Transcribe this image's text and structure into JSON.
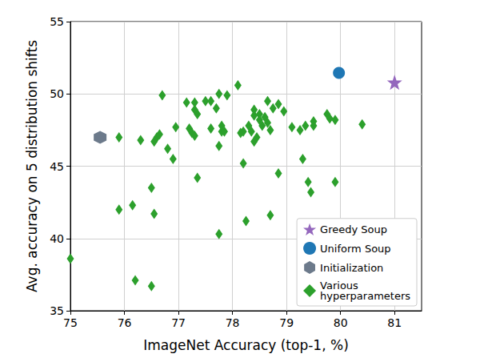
{
  "chart_data": {
    "type": "scatter",
    "x_label": "ImageNet Accuracy (top-1, %)",
    "y_label": "Avg. accuracy on 5 distribution shifts",
    "xlim": [
      75,
      81.5
    ],
    "xticks": [
      75,
      76,
      77,
      78,
      79,
      80,
      81
    ],
    "ylim": [
      35,
      55
    ],
    "yticks": [
      35,
      40,
      45,
      50,
      55
    ],
    "grid": true,
    "legend": "lower right",
    "series": [
      {
        "name": "Greedy Soup",
        "color": "#9467bd",
        "marker": "star",
        "x": [
          81.0
        ],
        "values": [
          50.8
        ]
      },
      {
        "name": "Uniform Soup",
        "color": "#1f77b4",
        "marker": "circle",
        "x": [
          79.97
        ],
        "values": [
          51.45
        ]
      },
      {
        "name": "Initialization",
        "color": "#6c7a8b",
        "marker": "hexagon",
        "x": [
          75.55
        ],
        "values": [
          47.0
        ]
      },
      {
        "name": "Various\nhyperparameters",
        "color": "#2ca02c",
        "marker": "diamond",
        "x": [
          75.0,
          75.9,
          75.9,
          76.15,
          76.2,
          76.3,
          76.5,
          76.55,
          76.5,
          76.55,
          76.6,
          76.65,
          76.7,
          76.8,
          76.9,
          76.95,
          77.15,
          77.2,
          77.25,
          77.3,
          77.3,
          77.3,
          77.35,
          77.35,
          77.5,
          77.6,
          77.6,
          77.7,
          77.75,
          77.75,
          77.75,
          77.8,
          77.8,
          77.85,
          77.9,
          78.1,
          78.15,
          78.2,
          78.2,
          78.25,
          78.3,
          78.35,
          78.4,
          78.4,
          78.4,
          78.45,
          78.5,
          78.5,
          78.55,
          78.6,
          78.65,
          78.65,
          78.7,
          78.7,
          78.75,
          78.85,
          78.85,
          78.95,
          79.1,
          79.25,
          79.3,
          79.35,
          79.4,
          79.45,
          79.5,
          79.5,
          79.75,
          79.8,
          79.9,
          79.9,
          80.4
        ],
        "values": [
          38.6,
          47.0,
          42.0,
          42.3,
          37.1,
          46.8,
          43.5,
          41.7,
          36.7,
          46.7,
          47.0,
          47.2,
          49.9,
          46.2,
          45.5,
          47.7,
          49.4,
          47.6,
          47.3,
          49.4,
          48.9,
          47.1,
          44.2,
          48.6,
          49.5,
          47.6,
          49.5,
          49.0,
          50.0,
          46.4,
          40.3,
          47.4,
          47.8,
          47.4,
          49.9,
          50.6,
          47.3,
          47.4,
          45.2,
          41.2,
          47.8,
          47.4,
          48.5,
          48.9,
          46.7,
          47.0,
          48.6,
          48.2,
          47.8,
          48.4,
          48.0,
          49.5,
          47.5,
          41.6,
          49.0,
          49.3,
          44.5,
          48.8,
          47.7,
          47.5,
          45.5,
          47.8,
          43.9,
          43.2,
          47.8,
          48.1,
          48.6,
          48.3,
          48.2,
          43.9,
          47.9
        ]
      }
    ]
  }
}
